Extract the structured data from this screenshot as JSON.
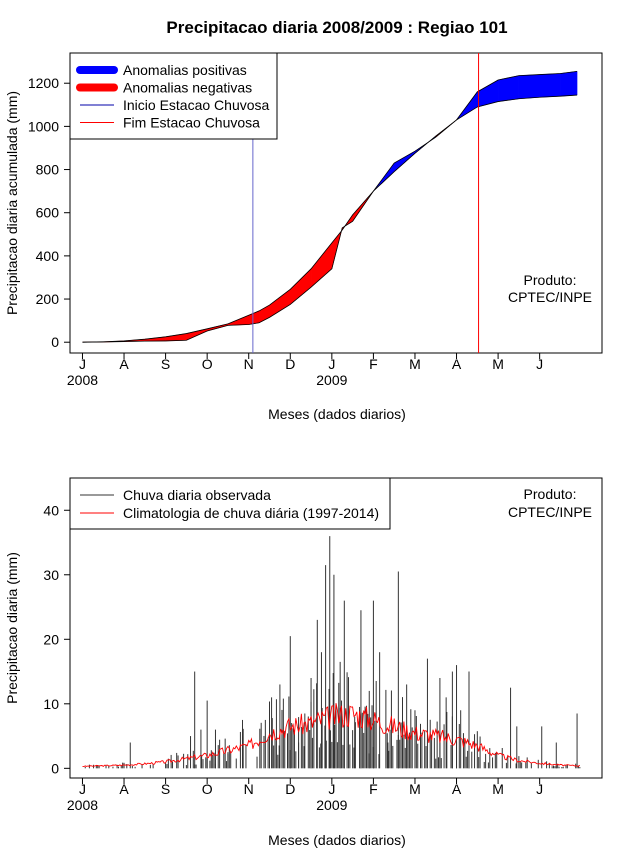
{
  "chart_data": [
    {
      "type": "area",
      "title": "Precipitacao diaria 2008/2009 : Regiao 101",
      "xlabel": "Meses (dados diarios)",
      "ylabel": "Precipitacao diaria acumulada (mm)",
      "ylim": [
        -50,
        1340
      ],
      "yticks": [
        0,
        200,
        400,
        600,
        800,
        1000,
        1200
      ],
      "months": [
        "J",
        "A",
        "S",
        "O",
        "N",
        "D",
        "J",
        "F",
        "M",
        "A",
        "M",
        "J"
      ],
      "year_labels": [
        {
          "label": "2008",
          "month_index": 0
        },
        {
          "label": "2009",
          "month_index": 6
        }
      ],
      "note": [
        "Produto:",
        "CPTEC/INPE"
      ],
      "colors": {
        "positive": "#0000ff",
        "negative": "#ff0000",
        "start_line": "#6666cc",
        "end_line": "#ff0000"
      },
      "legend": [
        {
          "label": "Anomalias positivas",
          "kind": "thick",
          "color": "#0000ff"
        },
        {
          "label": "Anomalias negativas",
          "kind": "thick",
          "color": "#ff0000"
        },
        {
          "label": "Inicio Estacao Chuvosa",
          "kind": "thin",
          "color": "#0000aa"
        },
        {
          "label": "Fim Estacao Chuvosa",
          "kind": "thin",
          "color": "#ff0000"
        }
      ],
      "season_start_month": 4.1,
      "season_end_month": 9.53,
      "x_range_months": [
        -0.3,
        12.5
      ],
      "series": [
        {
          "name": "Climatologia acumulada",
          "x": [
            0,
            0.5,
            1,
            1.5,
            2,
            2.5,
            3,
            3.5,
            4,
            4.25,
            4.5,
            5,
            5.5,
            6,
            6.25,
            6.5,
            7,
            7.5,
            8,
            8.5,
            9,
            9.5,
            10,
            10.5,
            11,
            11.5,
            11.9
          ],
          "values": [
            0,
            2,
            6,
            14,
            25,
            40,
            62,
            85,
            125,
            145,
            172,
            245,
            340,
            460,
            520,
            590,
            700,
            790,
            875,
            955,
            1030,
            1090,
            1115,
            1128,
            1135,
            1140,
            1145
          ]
        },
        {
          "name": "Observada acumulada",
          "x": [
            0,
            0.5,
            1,
            1.5,
            2,
            2.5,
            3,
            3.5,
            4,
            4.25,
            4.5,
            5,
            5.5,
            6,
            6.25,
            6.5,
            7,
            7.5,
            8,
            8.5,
            9,
            9.5,
            10,
            10.5,
            11,
            11.5,
            11.9
          ],
          "values": [
            0,
            1,
            3,
            5,
            6,
            9,
            52,
            78,
            82,
            90,
            115,
            175,
            255,
            340,
            530,
            560,
            700,
            830,
            885,
            950,
            1030,
            1160,
            1215,
            1235,
            1240,
            1245,
            1255
          ]
        }
      ]
    },
    {
      "type": "bar",
      "title": "",
      "xlabel": "Meses (dados diarios)",
      "ylabel": "Precipitacao diaria (mm)",
      "ylim": [
        -1.5,
        45
      ],
      "yticks": [
        0,
        10,
        20,
        30,
        40
      ],
      "months": [
        "J",
        "A",
        "S",
        "O",
        "N",
        "D",
        "J",
        "F",
        "M",
        "A",
        "M",
        "J"
      ],
      "year_labels": [
        {
          "label": "2008",
          "month_index": 0
        },
        {
          "label": "2009",
          "month_index": 6
        }
      ],
      "note": [
        "Produto:",
        "CPTEC/INPE"
      ],
      "colors": {
        "observed": "#333333",
        "climatology": "#ff0000"
      },
      "legend": [
        {
          "label": "Chuva diaria observada",
          "kind": "thin",
          "color": "#333333"
        },
        {
          "label": "Climatologia de chuva diária (1997-2014)",
          "kind": "thin",
          "color": "#ff0000"
        }
      ],
      "x_range_months": [
        -0.3,
        12.5
      ],
      "series": [
        {
          "name": "Chuva diaria observada (picos)",
          "x": [
            1.15,
            2.3,
            2.6,
            2.7,
            2.85,
            3.0,
            3.2,
            3.5,
            3.85,
            4.4,
            4.55,
            4.75,
            5.0,
            5.2,
            5.35,
            5.5,
            5.65,
            5.75,
            5.85,
            5.95,
            6.05,
            6.2,
            6.3,
            6.55,
            6.7,
            6.9,
            7.0,
            7.15,
            7.35,
            7.6,
            7.8,
            8.0,
            8.3,
            8.6,
            8.75,
            8.9,
            9.0,
            9.1,
            9.3,
            10.3,
            10.45,
            11.05,
            11.4,
            11.9
          ],
          "values": [
            4,
            2,
            5,
            15,
            6,
            10.5,
            6,
            2.5,
            7.5,
            7.5,
            11,
            13,
            20.5,
            4,
            8.5,
            14,
            23,
            18,
            31.5,
            36,
            30,
            16.5,
            26,
            8,
            24.5,
            12,
            26,
            18,
            4,
            30.5,
            13,
            9,
            17,
            14,
            11,
            15,
            16,
            9,
            15,
            12.5,
            6.5,
            6.5,
            4,
            8.5
          ]
        },
        {
          "name": "Climatologia de chuva diária (1997-2014)",
          "x": [
            0,
            0.5,
            1,
            1.5,
            2,
            2.5,
            3,
            3.5,
            4,
            4.5,
            5,
            5.5,
            6,
            6.5,
            7,
            7.5,
            8,
            8.5,
            9,
            9.5,
            10,
            10.5,
            11,
            11.5,
            11.9
          ],
          "values": [
            0.3,
            0.4,
            0.5,
            0.7,
            1.0,
            1.5,
            2.0,
            2.8,
            3.5,
            5.5,
            6.5,
            7.0,
            8.0,
            8.5,
            7.5,
            6.5,
            5.5,
            5.0,
            4.5,
            3.5,
            2.0,
            1.2,
            0.8,
            0.5,
            0.4
          ]
        }
      ]
    }
  ]
}
